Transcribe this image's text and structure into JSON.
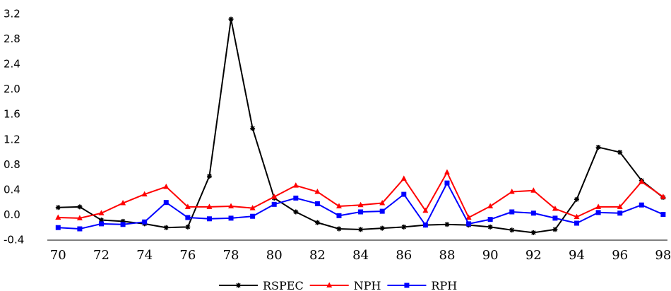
{
  "chart_data": {
    "type": "line",
    "title": "",
    "xlabel": "",
    "ylabel": "",
    "x": [
      70,
      71,
      72,
      73,
      74,
      75,
      76,
      77,
      78,
      79,
      80,
      81,
      82,
      83,
      84,
      85,
      86,
      87,
      88,
      89,
      90,
      91,
      92,
      93,
      94,
      95,
      96,
      97,
      98
    ],
    "xlim": [
      69.5,
      98.2
    ],
    "ylim": [
      -0.4,
      3.2
    ],
    "x_tick_labels": [
      "70",
      "72",
      "74",
      "76",
      "78",
      "80",
      "82",
      "84",
      "86",
      "88",
      "90",
      "92",
      "94",
      "96",
      "98"
    ],
    "y_tick_labels": [
      "3.2",
      "2.8",
      "2.4",
      "2.0",
      "1.6",
      "1.2",
      "0.8",
      "0.4",
      "0.0",
      "-0.4"
    ],
    "grid": false,
    "legend_position": "bottom-center",
    "series": [
      {
        "name": "RSPEC",
        "color": "#000000",
        "marker": "asterisk",
        "values": [
          0.12,
          0.13,
          -0.08,
          -0.1,
          -0.14,
          -0.2,
          -0.19,
          0.62,
          3.12,
          1.38,
          0.27,
          0.05,
          -0.12,
          -0.22,
          -0.23,
          -0.21,
          -0.19,
          -0.16,
          -0.15,
          -0.16,
          -0.19,
          -0.24,
          -0.28,
          -0.23,
          0.25,
          1.08,
          1.0,
          0.55,
          0.28
        ]
      },
      {
        "name": "NPH",
        "color": "#ff0000",
        "marker": "triangle",
        "values": [
          -0.04,
          -0.05,
          0.03,
          0.19,
          0.33,
          0.45,
          0.13,
          0.13,
          0.14,
          0.11,
          0.29,
          0.47,
          0.37,
          0.14,
          0.16,
          0.19,
          0.58,
          0.07,
          0.68,
          -0.04,
          0.14,
          0.37,
          0.39,
          0.1,
          -0.03,
          0.13,
          0.13,
          0.53,
          0.29
        ]
      },
      {
        "name": "RPH",
        "color": "#0000ff",
        "marker": "square",
        "values": [
          -0.2,
          -0.22,
          -0.14,
          -0.15,
          -0.11,
          0.2,
          -0.04,
          -0.06,
          -0.05,
          -0.02,
          0.17,
          0.27,
          0.18,
          -0.01,
          0.05,
          0.06,
          0.33,
          -0.16,
          0.51,
          -0.14,
          -0.07,
          0.05,
          0.03,
          -0.05,
          -0.13,
          0.04,
          0.03,
          0.16,
          0.01
        ]
      }
    ]
  }
}
